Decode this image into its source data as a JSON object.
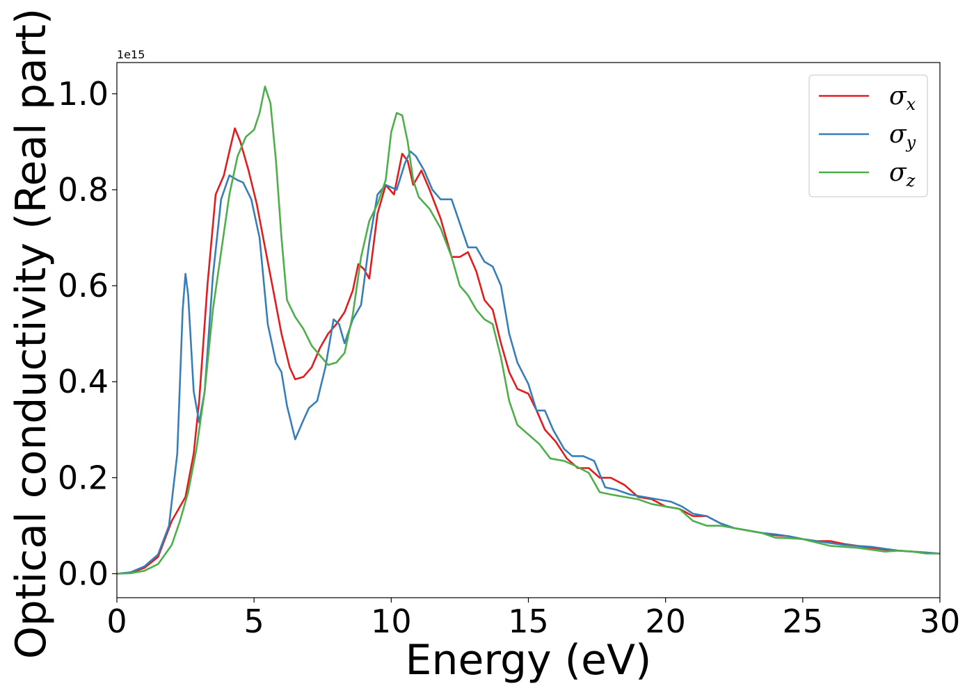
{
  "chart_data": {
    "type": "line",
    "title": "",
    "xlabel": "Energy (eV)",
    "ylabel": "Optical conductivity (Real part)",
    "y_offset_label": "1e15",
    "xlim": [
      0,
      30
    ],
    "ylim": [
      -0.05,
      1.065
    ],
    "x_ticks": [
      0,
      5,
      10,
      15,
      20,
      25,
      30
    ],
    "x_tick_labels": [
      "0",
      "5",
      "10",
      "15",
      "20",
      "25",
      "30"
    ],
    "y_ticks": [
      0.0,
      0.2,
      0.4,
      0.6,
      0.8,
      1.0
    ],
    "y_tick_labels": [
      "0.0",
      "0.2",
      "0.4",
      "0.6",
      "0.8",
      "1.0"
    ],
    "grid": false,
    "legend_position": "top-right",
    "series": [
      {
        "name": "σx",
        "symbol": "σ",
        "subscript": "x",
        "color": "#e41a1c",
        "points": [
          [
            0,
            0
          ],
          [
            0.5,
            0.002
          ],
          [
            1.0,
            0.012
          ],
          [
            1.5,
            0.035
          ],
          [
            2.0,
            0.11
          ],
          [
            2.5,
            0.16
          ],
          [
            2.8,
            0.25
          ],
          [
            3.0,
            0.36
          ],
          [
            3.3,
            0.6
          ],
          [
            3.6,
            0.79
          ],
          [
            3.9,
            0.83
          ],
          [
            4.1,
            0.88
          ],
          [
            4.3,
            0.928
          ],
          [
            4.5,
            0.9
          ],
          [
            4.8,
            0.84
          ],
          [
            5.1,
            0.77
          ],
          [
            5.4,
            0.68
          ],
          [
            5.7,
            0.59
          ],
          [
            6.0,
            0.5
          ],
          [
            6.3,
            0.43
          ],
          [
            6.5,
            0.405
          ],
          [
            6.8,
            0.41
          ],
          [
            7.1,
            0.43
          ],
          [
            7.4,
            0.47
          ],
          [
            7.7,
            0.5
          ],
          [
            8.0,
            0.52
          ],
          [
            8.3,
            0.545
          ],
          [
            8.6,
            0.59
          ],
          [
            8.8,
            0.645
          ],
          [
            9.0,
            0.635
          ],
          [
            9.2,
            0.615
          ],
          [
            9.5,
            0.75
          ],
          [
            9.8,
            0.81
          ],
          [
            10.1,
            0.79
          ],
          [
            10.4,
            0.875
          ],
          [
            10.6,
            0.86
          ],
          [
            10.8,
            0.81
          ],
          [
            11.1,
            0.84
          ],
          [
            11.4,
            0.8
          ],
          [
            11.8,
            0.74
          ],
          [
            12.2,
            0.66
          ],
          [
            12.5,
            0.66
          ],
          [
            12.8,
            0.67
          ],
          [
            13.1,
            0.63
          ],
          [
            13.4,
            0.57
          ],
          [
            13.7,
            0.55
          ],
          [
            14.0,
            0.48
          ],
          [
            14.3,
            0.42
          ],
          [
            14.6,
            0.385
          ],
          [
            15.0,
            0.375
          ],
          [
            15.3,
            0.34
          ],
          [
            15.6,
            0.3
          ],
          [
            16.0,
            0.275
          ],
          [
            16.4,
            0.24
          ],
          [
            16.8,
            0.22
          ],
          [
            17.2,
            0.22
          ],
          [
            17.6,
            0.2
          ],
          [
            18.0,
            0.2
          ],
          [
            18.5,
            0.185
          ],
          [
            19.0,
            0.16
          ],
          [
            19.5,
            0.155
          ],
          [
            20.0,
            0.14
          ],
          [
            20.5,
            0.135
          ],
          [
            21.0,
            0.12
          ],
          [
            21.5,
            0.12
          ],
          [
            22.0,
            0.105
          ],
          [
            22.5,
            0.095
          ],
          [
            23.0,
            0.09
          ],
          [
            23.5,
            0.085
          ],
          [
            24.0,
            0.08
          ],
          [
            24.5,
            0.078
          ],
          [
            25.0,
            0.072
          ],
          [
            25.5,
            0.068
          ],
          [
            26.0,
            0.068
          ],
          [
            26.5,
            0.062
          ],
          [
            27.0,
            0.058
          ],
          [
            27.5,
            0.054
          ],
          [
            28.0,
            0.05
          ],
          [
            28.5,
            0.048
          ],
          [
            29.0,
            0.046
          ],
          [
            29.5,
            0.044
          ],
          [
            30.0,
            0.042
          ]
        ]
      },
      {
        "name": "σy",
        "symbol": "σ",
        "subscript": "y",
        "color": "#377eb8",
        "points": [
          [
            0,
            0
          ],
          [
            0.5,
            0.003
          ],
          [
            1.0,
            0.015
          ],
          [
            1.5,
            0.04
          ],
          [
            1.9,
            0.1
          ],
          [
            2.2,
            0.25
          ],
          [
            2.4,
            0.55
          ],
          [
            2.5,
            0.625
          ],
          [
            2.6,
            0.58
          ],
          [
            2.8,
            0.38
          ],
          [
            3.0,
            0.315
          ],
          [
            3.2,
            0.38
          ],
          [
            3.5,
            0.62
          ],
          [
            3.8,
            0.78
          ],
          [
            4.1,
            0.83
          ],
          [
            4.4,
            0.82
          ],
          [
            4.6,
            0.815
          ],
          [
            4.9,
            0.78
          ],
          [
            5.2,
            0.7
          ],
          [
            5.5,
            0.52
          ],
          [
            5.8,
            0.44
          ],
          [
            6.0,
            0.42
          ],
          [
            6.2,
            0.35
          ],
          [
            6.5,
            0.28
          ],
          [
            6.8,
            0.32
          ],
          [
            7.0,
            0.345
          ],
          [
            7.3,
            0.36
          ],
          [
            7.6,
            0.43
          ],
          [
            7.9,
            0.53
          ],
          [
            8.1,
            0.52
          ],
          [
            8.3,
            0.48
          ],
          [
            8.6,
            0.53
          ],
          [
            8.9,
            0.56
          ],
          [
            9.2,
            0.69
          ],
          [
            9.5,
            0.79
          ],
          [
            9.8,
            0.81
          ],
          [
            10.2,
            0.8
          ],
          [
            10.5,
            0.855
          ],
          [
            10.7,
            0.88
          ],
          [
            10.9,
            0.87
          ],
          [
            11.2,
            0.84
          ],
          [
            11.5,
            0.8
          ],
          [
            11.8,
            0.78
          ],
          [
            12.2,
            0.78
          ],
          [
            12.5,
            0.73
          ],
          [
            12.8,
            0.68
          ],
          [
            13.1,
            0.68
          ],
          [
            13.4,
            0.65
          ],
          [
            13.7,
            0.64
          ],
          [
            14.0,
            0.6
          ],
          [
            14.3,
            0.5
          ],
          [
            14.6,
            0.44
          ],
          [
            15.0,
            0.395
          ],
          [
            15.3,
            0.34
          ],
          [
            15.6,
            0.34
          ],
          [
            15.9,
            0.3
          ],
          [
            16.3,
            0.26
          ],
          [
            16.6,
            0.245
          ],
          [
            17.0,
            0.245
          ],
          [
            17.4,
            0.235
          ],
          [
            17.8,
            0.18
          ],
          [
            18.2,
            0.175
          ],
          [
            18.7,
            0.165
          ],
          [
            19.2,
            0.16
          ],
          [
            19.7,
            0.155
          ],
          [
            20.2,
            0.15
          ],
          [
            20.6,
            0.14
          ],
          [
            21.0,
            0.125
          ],
          [
            21.5,
            0.12
          ],
          [
            22.0,
            0.105
          ],
          [
            22.5,
            0.095
          ],
          [
            23.0,
            0.09
          ],
          [
            23.5,
            0.085
          ],
          [
            24.0,
            0.082
          ],
          [
            24.5,
            0.078
          ],
          [
            25.0,
            0.072
          ],
          [
            25.5,
            0.068
          ],
          [
            26.0,
            0.064
          ],
          [
            26.5,
            0.06
          ],
          [
            27.0,
            0.058
          ],
          [
            27.5,
            0.056
          ],
          [
            28.0,
            0.052
          ],
          [
            28.5,
            0.048
          ],
          [
            29.0,
            0.046
          ],
          [
            29.5,
            0.044
          ],
          [
            30.0,
            0.042
          ]
        ]
      },
      {
        "name": "σz",
        "symbol": "σ",
        "subscript": "z",
        "color": "#4daf4a",
        "points": [
          [
            0,
            0
          ],
          [
            0.5,
            0.001
          ],
          [
            1.0,
            0.006
          ],
          [
            1.5,
            0.02
          ],
          [
            2.0,
            0.06
          ],
          [
            2.3,
            0.11
          ],
          [
            2.6,
            0.17
          ],
          [
            2.9,
            0.26
          ],
          [
            3.2,
            0.38
          ],
          [
            3.5,
            0.55
          ],
          [
            3.8,
            0.67
          ],
          [
            4.1,
            0.79
          ],
          [
            4.4,
            0.87
          ],
          [
            4.7,
            0.91
          ],
          [
            5.0,
            0.925
          ],
          [
            5.2,
            0.96
          ],
          [
            5.4,
            1.015
          ],
          [
            5.6,
            0.98
          ],
          [
            5.8,
            0.86
          ],
          [
            6.0,
            0.7
          ],
          [
            6.2,
            0.57
          ],
          [
            6.5,
            0.535
          ],
          [
            6.8,
            0.51
          ],
          [
            7.1,
            0.475
          ],
          [
            7.4,
            0.455
          ],
          [
            7.7,
            0.435
          ],
          [
            8.0,
            0.44
          ],
          [
            8.3,
            0.46
          ],
          [
            8.6,
            0.54
          ],
          [
            8.9,
            0.66
          ],
          [
            9.2,
            0.735
          ],
          [
            9.5,
            0.77
          ],
          [
            9.8,
            0.82
          ],
          [
            10.0,
            0.92
          ],
          [
            10.2,
            0.96
          ],
          [
            10.4,
            0.955
          ],
          [
            10.6,
            0.9
          ],
          [
            10.8,
            0.82
          ],
          [
            11.0,
            0.785
          ],
          [
            11.4,
            0.76
          ],
          [
            11.8,
            0.72
          ],
          [
            12.2,
            0.66
          ],
          [
            12.5,
            0.6
          ],
          [
            12.8,
            0.58
          ],
          [
            13.1,
            0.55
          ],
          [
            13.4,
            0.53
          ],
          [
            13.7,
            0.52
          ],
          [
            14.0,
            0.45
          ],
          [
            14.3,
            0.36
          ],
          [
            14.6,
            0.31
          ],
          [
            15.0,
            0.29
          ],
          [
            15.4,
            0.27
          ],
          [
            15.8,
            0.24
          ],
          [
            16.3,
            0.235
          ],
          [
            16.7,
            0.225
          ],
          [
            17.2,
            0.21
          ],
          [
            17.6,
            0.17
          ],
          [
            18.0,
            0.165
          ],
          [
            18.5,
            0.16
          ],
          [
            19.0,
            0.155
          ],
          [
            19.5,
            0.145
          ],
          [
            20.0,
            0.14
          ],
          [
            20.5,
            0.135
          ],
          [
            21.0,
            0.11
          ],
          [
            21.5,
            0.1
          ],
          [
            22.0,
            0.1
          ],
          [
            22.5,
            0.095
          ],
          [
            23.0,
            0.09
          ],
          [
            23.5,
            0.085
          ],
          [
            24.0,
            0.075
          ],
          [
            24.5,
            0.074
          ],
          [
            25.0,
            0.072
          ],
          [
            25.5,
            0.065
          ],
          [
            26.0,
            0.058
          ],
          [
            26.5,
            0.056
          ],
          [
            27.0,
            0.054
          ],
          [
            27.5,
            0.05
          ],
          [
            28.0,
            0.046
          ],
          [
            28.5,
            0.048
          ],
          [
            29.0,
            0.046
          ],
          [
            29.5,
            0.042
          ],
          [
            30.0,
            0.042
          ]
        ]
      }
    ]
  }
}
